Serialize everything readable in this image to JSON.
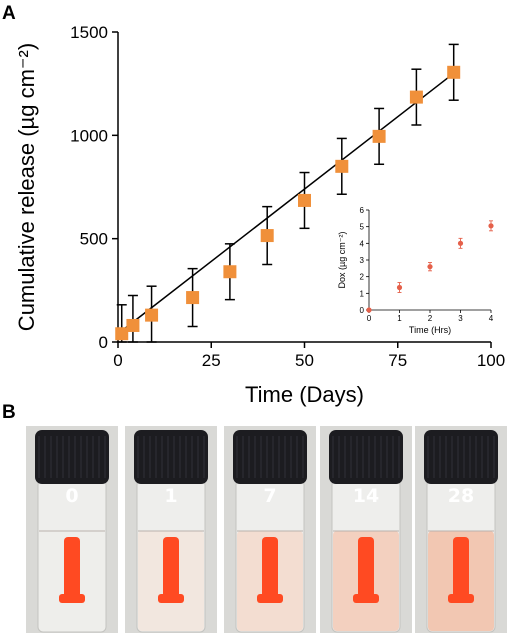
{
  "figure": {
    "panel_a_label": "A",
    "panel_b_label": "B"
  },
  "colors": {
    "marker": "#f0903a",
    "inset_marker": "#e5604a",
    "fit_line": "#000000",
    "gel": "#ff4a22",
    "cap": "#1c1c20"
  },
  "chart_data": [
    {
      "type": "scatter",
      "title": "",
      "xlabel": "Time (Days)",
      "ylabel": "Cumulative release (µg cm⁻²)",
      "xlim": [
        0,
        100
      ],
      "ylim": [
        0,
        1500
      ],
      "xticks": [
        "0",
        "25",
        "50",
        "75",
        "100"
      ],
      "yticks": [
        "0",
        "500",
        "1000",
        "1500"
      ],
      "grid": false,
      "marker": "square",
      "fit_line": {
        "x": [
          0,
          90
        ],
        "y": [
          40,
          1300
        ]
      },
      "series": [
        {
          "x": [
            1,
            4,
            9,
            20,
            30,
            40,
            50,
            60,
            70,
            80,
            90
          ],
          "y": [
            40,
            80,
            130,
            215,
            340,
            515,
            685,
            850,
            995,
            1185,
            1305
          ],
          "error": [
            140,
            145,
            140,
            140,
            135,
            140,
            135,
            135,
            135,
            135,
            135
          ]
        }
      ]
    },
    {
      "type": "scatter",
      "title": "",
      "xlabel": "Time (Hrs)",
      "ylabel": "Dox (µg cm⁻²)",
      "xlim": [
        0,
        4
      ],
      "ylim": [
        0,
        6
      ],
      "xticks": [
        "0",
        "1",
        "2",
        "3",
        "4"
      ],
      "yticks": [
        "0",
        "1",
        "2",
        "3",
        "4",
        "5",
        "6"
      ],
      "grid": false,
      "marker": "circle",
      "series": [
        {
          "x": [
            0,
            1,
            2,
            3,
            4
          ],
          "y": [
            0,
            1.35,
            2.6,
            4.0,
            5.05
          ],
          "error": [
            0,
            0.3,
            0.25,
            0.3,
            0.3
          ]
        }
      ]
    }
  ],
  "vials": [
    {
      "label": "0",
      "tint": "#f2f0ee",
      "opacity": 0.15
    },
    {
      "label": "1",
      "tint": "#f6ddd1",
      "opacity": 0.45
    },
    {
      "label": "7",
      "tint": "#f6d2c0",
      "opacity": 0.6
    },
    {
      "label": "14",
      "tint": "#f4c6b0",
      "opacity": 0.75
    },
    {
      "label": "28",
      "tint": "#f2c0a8",
      "opacity": 0.85
    }
  ]
}
